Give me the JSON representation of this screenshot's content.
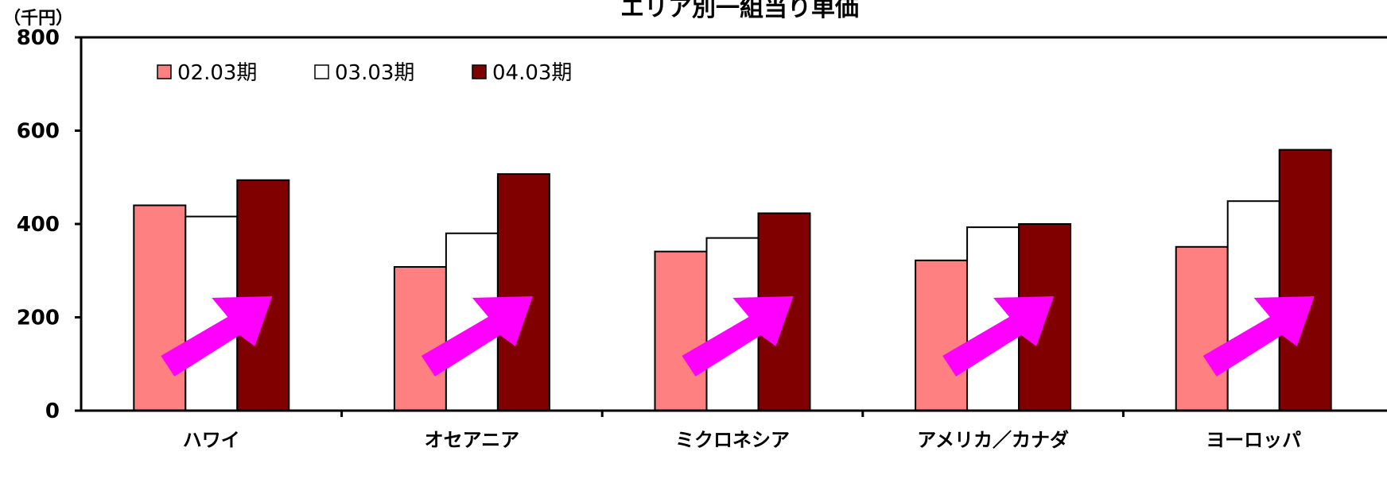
{
  "chart_data": {
    "type": "bar",
    "title": "エリア別一組当り単価",
    "ylabel": "（千円）",
    "xlabel": "",
    "ylim": [
      0,
      800
    ],
    "yticks": [
      0,
      200,
      400,
      600,
      800
    ],
    "categories": [
      "ハワイ",
      "オセアニア",
      "ミクロネシア",
      "アメリカ／カナダ",
      "ヨーロッパ"
    ],
    "series": [
      {
        "name": "02.03期",
        "color": "#FF8080",
        "values": [
          440,
          308,
          341,
          322,
          351
        ]
      },
      {
        "name": "03.03期",
        "color": "#FFFFFF",
        "values": [
          416,
          380,
          370,
          393,
          449
        ]
      },
      {
        "name": "04.03期",
        "color": "#800000",
        "values": [
          494,
          507,
          423,
          400,
          559
        ]
      }
    ],
    "legend_position": "top-left",
    "grid": false,
    "annotations": {
      "arrow_color": "#FF00FF",
      "arrow_icon": "up-right-arrow-icon",
      "count": 5
    }
  }
}
